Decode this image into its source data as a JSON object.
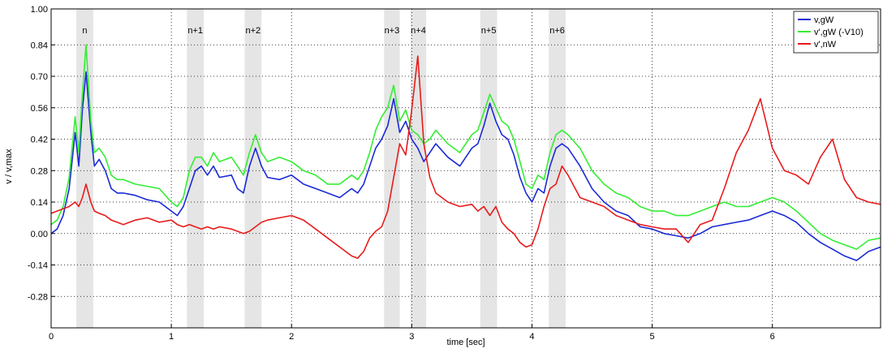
{
  "chart_data": {
    "type": "line",
    "title": "",
    "xlabel": "time [sec]",
    "ylabel": "v / v,max",
    "xlim": [
      0,
      6.9
    ],
    "ylim": [
      -0.42,
      1.0
    ],
    "xticks": [
      0,
      1,
      2,
      3,
      4,
      5,
      6
    ],
    "yticks": [
      1.0,
      0.84,
      0.7,
      0.56,
      0.42,
      0.28,
      0.14,
      0.0,
      -0.14,
      -0.28
    ],
    "ytick_labels": [
      "1.00",
      "0.84",
      "0.70",
      "0.56",
      "0.42",
      "0.28",
      "0.14",
      "0.00",
      "-0.14",
      "-0.28"
    ],
    "grid": true,
    "grid_style": "dotted",
    "legend_position": "top-right",
    "phases": [
      {
        "label": "n",
        "start": 0.21,
        "end": 0.35
      },
      {
        "label": "n+1",
        "start": 1.13,
        "end": 1.27
      },
      {
        "label": "n+2",
        "start": 1.61,
        "end": 1.75
      },
      {
        "label": "n+3",
        "start": 2.77,
        "end": 2.9
      },
      {
        "label": "n+4",
        "start": 2.99,
        "end": 3.12
      },
      {
        "label": "n+5",
        "start": 3.57,
        "end": 3.71
      },
      {
        "label": "n+6",
        "start": 4.14,
        "end": 4.28
      }
    ],
    "series": [
      {
        "name": "v,gW",
        "color": "#1a2ad6",
        "x": [
          0,
          0.05,
          0.1,
          0.15,
          0.2,
          0.23,
          0.26,
          0.29,
          0.33,
          0.36,
          0.4,
          0.45,
          0.5,
          0.55,
          0.6,
          0.7,
          0.8,
          0.9,
          1.0,
          1.05,
          1.1,
          1.15,
          1.2,
          1.25,
          1.3,
          1.35,
          1.4,
          1.5,
          1.55,
          1.6,
          1.65,
          1.7,
          1.75,
          1.8,
          1.9,
          2.0,
          2.1,
          2.2,
          2.3,
          2.4,
          2.5,
          2.55,
          2.6,
          2.65,
          2.7,
          2.75,
          2.8,
          2.85,
          2.9,
          2.95,
          3.0,
          3.05,
          3.1,
          3.15,
          3.2,
          3.3,
          3.4,
          3.5,
          3.55,
          3.6,
          3.65,
          3.7,
          3.75,
          3.8,
          3.85,
          3.9,
          3.95,
          4.0,
          4.05,
          4.1,
          4.15,
          4.2,
          4.25,
          4.3,
          4.4,
          4.5,
          4.6,
          4.7,
          4.8,
          4.9,
          5.0,
          5.1,
          5.2,
          5.3,
          5.4,
          5.5,
          5.6,
          5.7,
          5.8,
          5.9,
          6.0,
          6.1,
          6.2,
          6.3,
          6.4,
          6.5,
          6.6,
          6.7,
          6.8,
          6.9
        ],
        "values": [
          0.0,
          0.02,
          0.08,
          0.2,
          0.45,
          0.3,
          0.55,
          0.72,
          0.45,
          0.3,
          0.33,
          0.28,
          0.2,
          0.18,
          0.18,
          0.17,
          0.15,
          0.14,
          0.1,
          0.08,
          0.12,
          0.2,
          0.28,
          0.3,
          0.26,
          0.3,
          0.25,
          0.26,
          0.2,
          0.18,
          0.3,
          0.38,
          0.3,
          0.25,
          0.24,
          0.26,
          0.22,
          0.2,
          0.18,
          0.16,
          0.2,
          0.18,
          0.22,
          0.3,
          0.38,
          0.42,
          0.48,
          0.6,
          0.45,
          0.5,
          0.42,
          0.38,
          0.32,
          0.36,
          0.4,
          0.34,
          0.3,
          0.38,
          0.4,
          0.48,
          0.58,
          0.5,
          0.44,
          0.42,
          0.35,
          0.25,
          0.18,
          0.14,
          0.2,
          0.18,
          0.3,
          0.38,
          0.4,
          0.38,
          0.3,
          0.2,
          0.14,
          0.1,
          0.08,
          0.03,
          0.02,
          0.0,
          -0.01,
          -0.02,
          0.0,
          0.03,
          0.04,
          0.05,
          0.06,
          0.08,
          0.1,
          0.08,
          0.05,
          0.0,
          -0.04,
          -0.07,
          -0.1,
          -0.12,
          -0.08,
          -0.06
        ]
      },
      {
        "name": "v',gW (-V10)",
        "color": "#33ee33",
        "x": [
          0,
          0.05,
          0.1,
          0.15,
          0.2,
          0.23,
          0.26,
          0.29,
          0.33,
          0.36,
          0.4,
          0.45,
          0.5,
          0.55,
          0.6,
          0.7,
          0.8,
          0.9,
          1.0,
          1.05,
          1.1,
          1.15,
          1.2,
          1.25,
          1.3,
          1.35,
          1.4,
          1.5,
          1.55,
          1.6,
          1.65,
          1.7,
          1.75,
          1.8,
          1.9,
          2.0,
          2.1,
          2.2,
          2.3,
          2.4,
          2.5,
          2.55,
          2.6,
          2.65,
          2.7,
          2.75,
          2.8,
          2.85,
          2.9,
          2.95,
          3.0,
          3.05,
          3.1,
          3.15,
          3.2,
          3.3,
          3.4,
          3.5,
          3.55,
          3.6,
          3.65,
          3.7,
          3.75,
          3.8,
          3.85,
          3.9,
          3.95,
          4.0,
          4.05,
          4.1,
          4.15,
          4.2,
          4.25,
          4.3,
          4.4,
          4.5,
          4.6,
          4.7,
          4.8,
          4.9,
          5.0,
          5.1,
          5.2,
          5.3,
          5.4,
          5.5,
          5.6,
          5.7,
          5.8,
          5.9,
          6.0,
          6.1,
          6.2,
          6.3,
          6.4,
          6.5,
          6.6,
          6.7,
          6.8,
          6.9
        ],
        "values": [
          0.04,
          0.06,
          0.12,
          0.25,
          0.52,
          0.36,
          0.62,
          0.84,
          0.5,
          0.36,
          0.38,
          0.34,
          0.26,
          0.24,
          0.24,
          0.22,
          0.21,
          0.2,
          0.14,
          0.12,
          0.16,
          0.28,
          0.34,
          0.34,
          0.3,
          0.36,
          0.32,
          0.34,
          0.3,
          0.26,
          0.36,
          0.44,
          0.36,
          0.32,
          0.34,
          0.32,
          0.28,
          0.26,
          0.22,
          0.22,
          0.26,
          0.24,
          0.28,
          0.36,
          0.46,
          0.52,
          0.56,
          0.66,
          0.5,
          0.55,
          0.46,
          0.44,
          0.4,
          0.42,
          0.46,
          0.4,
          0.36,
          0.44,
          0.46,
          0.54,
          0.62,
          0.56,
          0.5,
          0.48,
          0.42,
          0.32,
          0.22,
          0.2,
          0.26,
          0.24,
          0.36,
          0.44,
          0.46,
          0.44,
          0.38,
          0.28,
          0.22,
          0.18,
          0.16,
          0.12,
          0.1,
          0.1,
          0.08,
          0.08,
          0.1,
          0.12,
          0.14,
          0.12,
          0.12,
          0.14,
          0.16,
          0.14,
          0.1,
          0.05,
          0.0,
          -0.03,
          -0.05,
          -0.07,
          -0.03,
          -0.02
        ]
      },
      {
        "name": "v',nW",
        "color": "#e81b1b",
        "x": [
          0,
          0.05,
          0.1,
          0.15,
          0.2,
          0.23,
          0.26,
          0.29,
          0.33,
          0.36,
          0.4,
          0.45,
          0.5,
          0.55,
          0.6,
          0.7,
          0.8,
          0.9,
          1.0,
          1.05,
          1.1,
          1.15,
          1.2,
          1.25,
          1.3,
          1.35,
          1.4,
          1.5,
          1.55,
          1.6,
          1.65,
          1.7,
          1.75,
          1.8,
          1.9,
          2.0,
          2.1,
          2.2,
          2.3,
          2.4,
          2.5,
          2.55,
          2.6,
          2.65,
          2.7,
          2.75,
          2.8,
          2.85,
          2.9,
          2.95,
          3.0,
          3.05,
          3.1,
          3.15,
          3.2,
          3.3,
          3.4,
          3.5,
          3.55,
          3.6,
          3.65,
          3.7,
          3.75,
          3.8,
          3.85,
          3.9,
          3.95,
          4.0,
          4.05,
          4.1,
          4.15,
          4.2,
          4.25,
          4.3,
          4.4,
          4.5,
          4.6,
          4.7,
          4.8,
          4.9,
          5.0,
          5.1,
          5.2,
          5.3,
          5.4,
          5.5,
          5.6,
          5.7,
          5.8,
          5.9,
          6.0,
          6.1,
          6.2,
          6.3,
          6.4,
          6.5,
          6.6,
          6.7,
          6.8,
          6.9
        ],
        "values": [
          0.09,
          0.1,
          0.11,
          0.12,
          0.14,
          0.12,
          0.16,
          0.22,
          0.14,
          0.1,
          0.09,
          0.08,
          0.06,
          0.05,
          0.04,
          0.06,
          0.07,
          0.05,
          0.06,
          0.04,
          0.03,
          0.04,
          0.03,
          0.02,
          0.03,
          0.02,
          0.03,
          0.02,
          0.01,
          0.0,
          0.01,
          0.03,
          0.05,
          0.06,
          0.07,
          0.08,
          0.06,
          0.02,
          -0.02,
          -0.06,
          -0.1,
          -0.11,
          -0.08,
          -0.02,
          0.01,
          0.03,
          0.1,
          0.25,
          0.4,
          0.35,
          0.55,
          0.79,
          0.4,
          0.25,
          0.18,
          0.14,
          0.12,
          0.13,
          0.1,
          0.12,
          0.08,
          0.12,
          0.05,
          0.02,
          0.0,
          -0.04,
          -0.06,
          -0.05,
          0.02,
          0.12,
          0.2,
          0.22,
          0.3,
          0.26,
          0.16,
          0.14,
          0.12,
          0.08,
          0.06,
          0.04,
          0.03,
          0.02,
          0.02,
          -0.04,
          0.04,
          0.06,
          0.2,
          0.36,
          0.46,
          0.6,
          0.38,
          0.28,
          0.26,
          0.22,
          0.34,
          0.42,
          0.24,
          0.16,
          0.14,
          0.13
        ]
      }
    ]
  }
}
